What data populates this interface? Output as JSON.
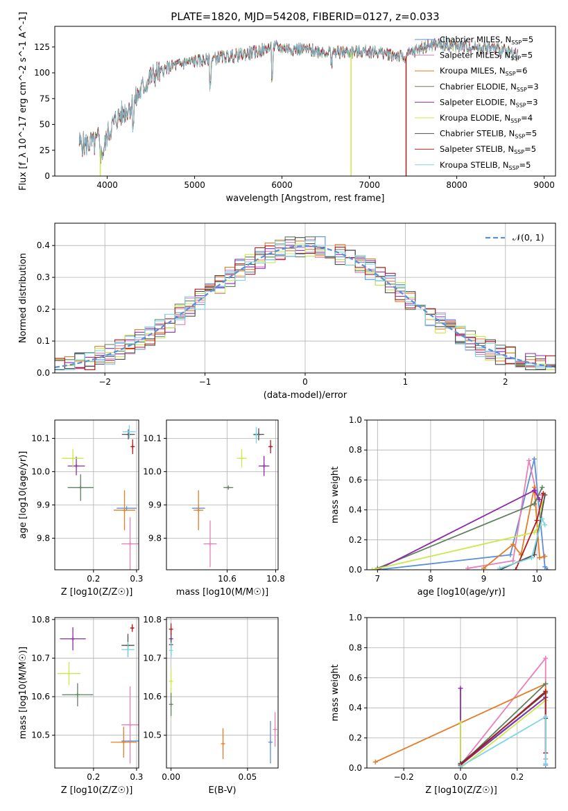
{
  "figure_title": "PLATE=1820, MJD=54208, FIBERID=0127, z=0.033",
  "colors": {
    "chabrier_miles": "#5b8fd6",
    "salpeter_miles": "#e87fb7",
    "kroupa_miles": "#e57b24",
    "chabrier_elodie": "#5e7f5e",
    "salpeter_elodie": "#8e2aa8",
    "kroupa_elodie": "#c9e84a",
    "chabrier_stelib": "#4d4d4d",
    "salpeter_stelib": "#b21a1a",
    "kroupa_stelib": "#7fd4e6",
    "gaussian": "#5b8fd6",
    "grid": "#b0b0b0"
  },
  "chart_data": [
    {
      "id": "spectrum",
      "type": "line",
      "xlabel": "wavelength [Angstrom, rest frame]",
      "ylabel": "Flux [f_λ 10^-17 erg cm^-2 s^-1 A^-1]",
      "xlim": [
        3400,
        9130
      ],
      "ylim": [
        0,
        145
      ],
      "xticks": [
        4000,
        5000,
        6000,
        7000,
        8000,
        9000
      ],
      "yticks": [
        0,
        25,
        50,
        75,
        100,
        125
      ],
      "grid": false,
      "legend_position": "top-right",
      "legend": [
        {
          "key": "chabrier_miles",
          "label": "Chabrier MILES, N",
          "sub": "SSP",
          "suffix": "=5"
        },
        {
          "key": "salpeter_miles",
          "label": "Salpeter MILES, N",
          "sub": "SSP",
          "suffix": "=5"
        },
        {
          "key": "kroupa_miles",
          "label": "Kroupa MILES, N",
          "sub": "SSP",
          "suffix": "=6"
        },
        {
          "key": "chabrier_elodie",
          "label": "Chabrier ELODIE, N",
          "sub": "SSP",
          "suffix": "=3"
        },
        {
          "key": "salpeter_elodie",
          "label": "Salpeter ELODIE, N",
          "sub": "SSP",
          "suffix": "=3"
        },
        {
          "key": "kroupa_elodie",
          "label": "Kroupa ELODIE, N",
          "sub": "SSP",
          "suffix": "=4"
        },
        {
          "key": "chabrier_stelib",
          "label": "Chabrier STELIB, N",
          "sub": "SSP",
          "suffix": "=5"
        },
        {
          "key": "salpeter_stelib",
          "label": "Salpeter STELIB, N",
          "sub": "SSP",
          "suffix": "=5"
        },
        {
          "key": "kroupa_stelib",
          "label": "Kroupa STELIB, N",
          "sub": "SSP",
          "suffix": "=5"
        }
      ],
      "continuum": [
        [
          3680,
          32
        ],
        [
          3750,
          30
        ],
        [
          3800,
          33
        ],
        [
          3850,
          30
        ],
        [
          3900,
          36
        ],
        [
          3930,
          20
        ],
        [
          3970,
          28
        ],
        [
          4000,
          40
        ],
        [
          4100,
          55
        ],
        [
          4200,
          63
        ],
        [
          4300,
          70
        ],
        [
          4400,
          85
        ],
        [
          4500,
          96
        ],
        [
          4700,
          105
        ],
        [
          4900,
          110
        ],
        [
          5100,
          112
        ],
        [
          5300,
          115
        ],
        [
          5500,
          117
        ],
        [
          5700,
          120
        ],
        [
          5900,
          125
        ],
        [
          6000,
          124
        ],
        [
          6200,
          123
        ],
        [
          6400,
          121
        ],
        [
          6600,
          120
        ],
        [
          6800,
          120
        ],
        [
          7000,
          121
        ],
        [
          7200,
          119
        ],
        [
          7400,
          115
        ],
        [
          7600,
          125
        ],
        [
          7800,
          128
        ],
        [
          8000,
          126
        ],
        [
          8200,
          125
        ],
        [
          8400,
          124
        ],
        [
          8600,
          120
        ],
        [
          8700,
          118
        ]
      ],
      "dropouts": [
        {
          "key": "kroupa_elodie",
          "x": 3920
        },
        {
          "key": "kroupa_elodie",
          "x": 6790
        },
        {
          "key": "salpeter_stelib",
          "x": 7420
        }
      ]
    },
    {
      "id": "residuals",
      "type": "step",
      "xlabel": "(data-model)/error",
      "ylabel": "Normed distribution",
      "xlim": [
        -2.5,
        2.5
      ],
      "ylim": [
        0,
        0.47
      ],
      "xticks": [
        -2,
        -1,
        0,
        1,
        2
      ],
      "yticks": [
        0.0,
        0.1,
        0.2,
        0.3,
        0.4
      ],
      "grid": true,
      "legend_position": "top-right",
      "legend_label": "𝒩(0, 1)",
      "bin_width": 0.1
    },
    {
      "id": "age_vs_z",
      "type": "scatter",
      "xlabel": "Z [log10(Z/Z☉)]",
      "ylabel": "age [log10(age/yr)]",
      "xlim": [
        0.11,
        0.305
      ],
      "ylim": [
        9.705,
        10.155
      ],
      "xticks": [
        0.2,
        0.3
      ],
      "yticks": [
        9.8,
        9.9,
        10.0,
        10.1
      ],
      "grid": true,
      "points": [
        {
          "key": "chabrier_miles",
          "x": 0.277,
          "y": 9.89,
          "xe": 0.023,
          "ye": 0.0
        },
        {
          "key": "salpeter_miles",
          "x": 0.285,
          "y": 9.783,
          "xe": 0.02,
          "ye": 0.08
        },
        {
          "key": "kroupa_miles",
          "x": 0.272,
          "y": 9.884,
          "xe": 0.025,
          "ye": 0.06
        },
        {
          "key": "chabrier_elodie",
          "x": 0.17,
          "y": 9.952,
          "xe": 0.03,
          "ye": 0.04
        },
        {
          "key": "salpeter_elodie",
          "x": 0.16,
          "y": 10.017,
          "xe": 0.02,
          "ye": 0.028
        },
        {
          "key": "kroupa_elodie",
          "x": 0.152,
          "y": 10.04,
          "xe": 0.025,
          "ye": 0.028
        },
        {
          "key": "chabrier_stelib",
          "x": 0.281,
          "y": 10.112,
          "xe": 0.015,
          "ye": 0.015
        },
        {
          "key": "salpeter_stelib",
          "x": 0.291,
          "y": 10.075,
          "xe": 0.004,
          "ye": 0.022
        },
        {
          "key": "kroupa_stelib",
          "x": 0.283,
          "y": 10.12,
          "xe": 0.015,
          "ye": 0.02
        }
      ]
    },
    {
      "id": "age_vs_mass",
      "type": "scatter",
      "xlabel": "mass [log10(M/M☉)]",
      "ylabel": "",
      "xlim": [
        10.35,
        10.81
      ],
      "ylim": [
        9.705,
        10.155
      ],
      "xticks": [
        10.6,
        10.8
      ],
      "yticks": [
        9.8,
        9.9,
        10.0,
        10.1
      ],
      "grid": true,
      "points": [
        {
          "key": "chabrier_miles",
          "x": 10.482,
          "y": 9.89,
          "xe": 0.027,
          "ye": 0.0
        },
        {
          "key": "salpeter_miles",
          "x": 10.53,
          "y": 9.783,
          "xe": 0.027,
          "ye": 0.07
        },
        {
          "key": "kroupa_miles",
          "x": 10.482,
          "y": 9.884,
          "xe": 0.02,
          "ye": 0.06
        },
        {
          "key": "chabrier_elodie",
          "x": 10.605,
          "y": 9.952,
          "xe": 0.02,
          "ye": 0.0
        },
        {
          "key": "salpeter_elodie",
          "x": 10.752,
          "y": 10.017,
          "xe": 0.022,
          "ye": 0.03
        },
        {
          "key": "kroupa_elodie",
          "x": 10.66,
          "y": 10.04,
          "xe": 0.02,
          "ye": 0.028
        },
        {
          "key": "chabrier_stelib",
          "x": 10.73,
          "y": 10.112,
          "xe": 0.022,
          "ye": 0.018
        },
        {
          "key": "salpeter_stelib",
          "x": 10.779,
          "y": 10.075,
          "xe": 0.008,
          "ye": 0.02
        },
        {
          "key": "kroupa_stelib",
          "x": 10.72,
          "y": 10.11,
          "xe": 0.01,
          "ye": 0.025
        }
      ]
    },
    {
      "id": "weight_vs_age",
      "type": "line",
      "xlabel": "age [log10(age/yr)]",
      "ylabel": "mass weight",
      "xlim": [
        6.8,
        10.35
      ],
      "ylim": [
        0,
        1.0
      ],
      "xticks": [
        7,
        8,
        9,
        10
      ],
      "yticks": [
        0.0,
        0.2,
        0.4,
        0.6,
        0.8,
        1.0
      ],
      "grid": true,
      "series": [
        {
          "key": "chabrier_miles",
          "points": [
            [
              7.0,
              0.0
            ],
            [
              9.5,
              0.1
            ],
            [
              9.95,
              0.74
            ],
            [
              10.15,
              0.02
            ],
            [
              10.2,
              0.0
            ]
          ]
        },
        {
          "key": "salpeter_miles",
          "points": [
            [
              8.7,
              0.01
            ],
            [
              9.55,
              0.06
            ],
            [
              9.85,
              0.73
            ],
            [
              10.0,
              0.5
            ],
            [
              10.1,
              0.5
            ]
          ]
        },
        {
          "key": "kroupa_miles",
          "points": [
            [
              9.0,
              0.01
            ],
            [
              9.55,
              0.17
            ],
            [
              9.7,
              0.1
            ],
            [
              9.95,
              0.55
            ],
            [
              10.05,
              0.08
            ],
            [
              10.15,
              0.09
            ]
          ]
        },
        {
          "key": "chabrier_elodie",
          "points": [
            [
              7.0,
              0.01
            ],
            [
              9.95,
              0.44
            ],
            [
              10.1,
              0.55
            ]
          ]
        },
        {
          "key": "salpeter_elodie",
          "points": [
            [
              7.0,
              0.0
            ],
            [
              9.95,
              0.53
            ],
            [
              10.05,
              0.47
            ]
          ]
        },
        {
          "key": "kroupa_elodie",
          "points": [
            [
              6.9,
              0.0
            ],
            [
              9.95,
              0.25
            ],
            [
              10.05,
              0.3
            ],
            [
              10.1,
              0.45
            ]
          ]
        },
        {
          "key": "chabrier_stelib",
          "points": [
            [
              9.3,
              0.0
            ],
            [
              9.95,
              0.1
            ],
            [
              10.15,
              0.5
            ]
          ]
        },
        {
          "key": "salpeter_stelib",
          "points": [
            [
              9.6,
              0.0
            ],
            [
              10.0,
              0.33
            ],
            [
              10.12,
              0.51
            ]
          ]
        },
        {
          "key": "kroupa_stelib",
          "points": [
            [
              9.3,
              0.01
            ],
            [
              9.9,
              0.08
            ],
            [
              10.1,
              0.34
            ],
            [
              10.15,
              0.3
            ]
          ]
        }
      ]
    },
    {
      "id": "mass_vs_z",
      "type": "scatter",
      "xlabel": "Z [log10(Z/Z☉)]",
      "ylabel": "mass [log10(M/M☉)]",
      "xlim": [
        0.11,
        0.305
      ],
      "ylim": [
        10.415,
        10.805
      ],
      "xticks": [
        0.2,
        0.3
      ],
      "yticks": [
        10.5,
        10.6,
        10.7,
        10.8
      ],
      "grid": true,
      "points": [
        {
          "key": "chabrier_miles",
          "x": 0.285,
          "y": 10.485,
          "xe": 0.02,
          "ye": 0.0
        },
        {
          "key": "salpeter_miles",
          "x": 0.285,
          "y": 10.527,
          "xe": 0.02,
          "ye": 0.1
        },
        {
          "key": "kroupa_miles",
          "x": 0.27,
          "y": 10.482,
          "xe": 0.03,
          "ye": 0.04
        },
        {
          "key": "chabrier_elodie",
          "x": 0.163,
          "y": 10.605,
          "xe": 0.036,
          "ye": 0.03
        },
        {
          "key": "salpeter_elodie",
          "x": 0.152,
          "y": 10.75,
          "xe": 0.03,
          "ye": 0.03
        },
        {
          "key": "kroupa_elodie",
          "x": 0.143,
          "y": 10.66,
          "xe": 0.027,
          "ye": 0.03
        },
        {
          "key": "chabrier_stelib",
          "x": 0.28,
          "y": 10.733,
          "xe": 0.015,
          "ye": 0.03
        },
        {
          "key": "salpeter_stelib",
          "x": 0.29,
          "y": 10.778,
          "xe": 0.004,
          "ye": 0.01
        },
        {
          "key": "kroupa_stelib",
          "x": 0.28,
          "y": 10.722,
          "xe": 0.015,
          "ye": 0.02
        }
      ]
    },
    {
      "id": "mass_vs_ebv",
      "type": "scatter",
      "xlabel": "E(B-V)",
      "ylabel": "",
      "xlim": [
        -0.003,
        0.07
      ],
      "ylim": [
        10.415,
        10.805
      ],
      "xticks": [
        0.0,
        0.05
      ],
      "yticks": [
        10.5,
        10.6,
        10.7,
        10.8
      ],
      "grid": true,
      "points": [
        {
          "key": "chabrier_miles",
          "x": 0.065,
          "y": 10.482,
          "xe": 0.0,
          "ye": 0.055
        },
        {
          "key": "salpeter_miles",
          "x": 0.068,
          "y": 10.515,
          "xe": 0.0,
          "ye": 0.045
        },
        {
          "key": "kroupa_miles",
          "x": 0.034,
          "y": 10.478,
          "xe": 0.0,
          "ye": 0.04
        },
        {
          "key": "chabrier_elodie",
          "x": 0.0,
          "y": 10.58,
          "xe": 0.0,
          "ye": 0.03
        },
        {
          "key": "salpeter_elodie",
          "x": 0.0,
          "y": 10.75,
          "xe": 0.0,
          "ye": 0.025
        },
        {
          "key": "kroupa_elodie",
          "x": 0.0,
          "y": 10.64,
          "xe": 0.0,
          "ye": 0.03
        },
        {
          "key": "chabrier_stelib",
          "x": 0.0,
          "y": 10.735,
          "xe": 0.0,
          "ye": 0.03
        },
        {
          "key": "salpeter_stelib",
          "x": 0.0,
          "y": 10.775,
          "xe": 0.0,
          "ye": 0.015
        },
        {
          "key": "kroupa_stelib",
          "x": 0.0,
          "y": 10.72,
          "xe": 0.0,
          "ye": 0.02
        }
      ]
    },
    {
      "id": "weight_vs_z",
      "type": "line",
      "xlabel": "Z [log10(Z/Z☉)]",
      "ylabel": "mass weight",
      "xlim": [
        -0.33,
        0.335
      ],
      "ylim": [
        0,
        1.0
      ],
      "xticks": [
        -0.2,
        0.0,
        0.2
      ],
      "yticks": [
        0.0,
        0.2,
        0.4,
        0.6,
        0.8,
        1.0
      ],
      "grid": true,
      "series": [
        {
          "key": "chabrier_miles",
          "points": [
            [
              0.0,
              0.03
            ],
            [
              0.3,
              0.47
            ],
            [
              0.3,
              0.02
            ]
          ]
        },
        {
          "key": "salpeter_miles",
          "points": [
            [
              0.0,
              0.02
            ],
            [
              0.3,
              0.73
            ],
            [
              0.3,
              0.06
            ]
          ]
        },
        {
          "key": "kroupa_miles",
          "points": [
            [
              -0.3,
              0.04
            ],
            [
              0.3,
              0.56
            ],
            [
              0.3,
              0.1
            ]
          ]
        },
        {
          "key": "chabrier_elodie",
          "points": [
            [
              0.0,
              0.02
            ],
            [
              0.3,
              0.56
            ]
          ]
        },
        {
          "key": "salpeter_elodie",
          "points": [
            [
              0.0,
              0.53
            ],
            [
              0.0,
              0.02
            ],
            [
              0.3,
              0.47
            ]
          ]
        },
        {
          "key": "kroupa_elodie",
          "points": [
            [
              0.0,
              0.3
            ],
            [
              0.0,
              0.0
            ],
            [
              0.3,
              0.45
            ]
          ]
        },
        {
          "key": "chabrier_stelib",
          "points": [
            [
              0.0,
              0.03
            ],
            [
              0.3,
              0.5
            ],
            [
              0.3,
              0.33
            ]
          ]
        },
        {
          "key": "salpeter_stelib",
          "points": [
            [
              0.0,
              0.02
            ],
            [
              0.3,
              0.51
            ],
            [
              0.3,
              0.1
            ]
          ]
        },
        {
          "key": "kroupa_stelib",
          "points": [
            [
              0.0,
              0.01
            ],
            [
              0.3,
              0.34
            ],
            [
              0.3,
              0.03
            ]
          ]
        }
      ]
    }
  ]
}
